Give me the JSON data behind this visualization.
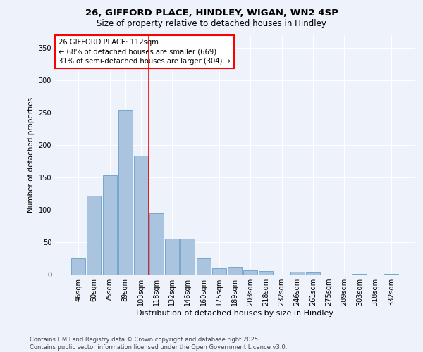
{
  "title_line1": "26, GIFFORD PLACE, HINDLEY, WIGAN, WN2 4SP",
  "title_line2": "Size of property relative to detached houses in Hindley",
  "xlabel": "Distribution of detached houses by size in Hindley",
  "ylabel": "Number of detached properties",
  "categories": [
    "46sqm",
    "60sqm",
    "75sqm",
    "89sqm",
    "103sqm",
    "118sqm",
    "132sqm",
    "146sqm",
    "160sqm",
    "175sqm",
    "189sqm",
    "203sqm",
    "218sqm",
    "232sqm",
    "246sqm",
    "261sqm",
    "275sqm",
    "289sqm",
    "303sqm",
    "318sqm",
    "332sqm"
  ],
  "values": [
    25,
    122,
    153,
    255,
    184,
    95,
    55,
    55,
    25,
    10,
    12,
    6,
    5,
    0,
    4,
    3,
    0,
    0,
    1,
    0,
    1
  ],
  "bar_color": "#aac4e0",
  "bar_edge_color": "#6a9fc8",
  "vline_color": "red",
  "annotation_text": "26 GIFFORD PLACE: 112sqm\n← 68% of detached houses are smaller (669)\n31% of semi-detached houses are larger (304) →",
  "annotation_box_color": "white",
  "annotation_box_edge_color": "red",
  "ylim": [
    0,
    370
  ],
  "yticks": [
    0,
    50,
    100,
    150,
    200,
    250,
    300,
    350
  ],
  "background_color": "#eef2fb",
  "grid_color": "white",
  "footer_line1": "Contains HM Land Registry data © Crown copyright and database right 2025.",
  "footer_line2": "Contains public sector information licensed under the Open Government Licence v3.0."
}
